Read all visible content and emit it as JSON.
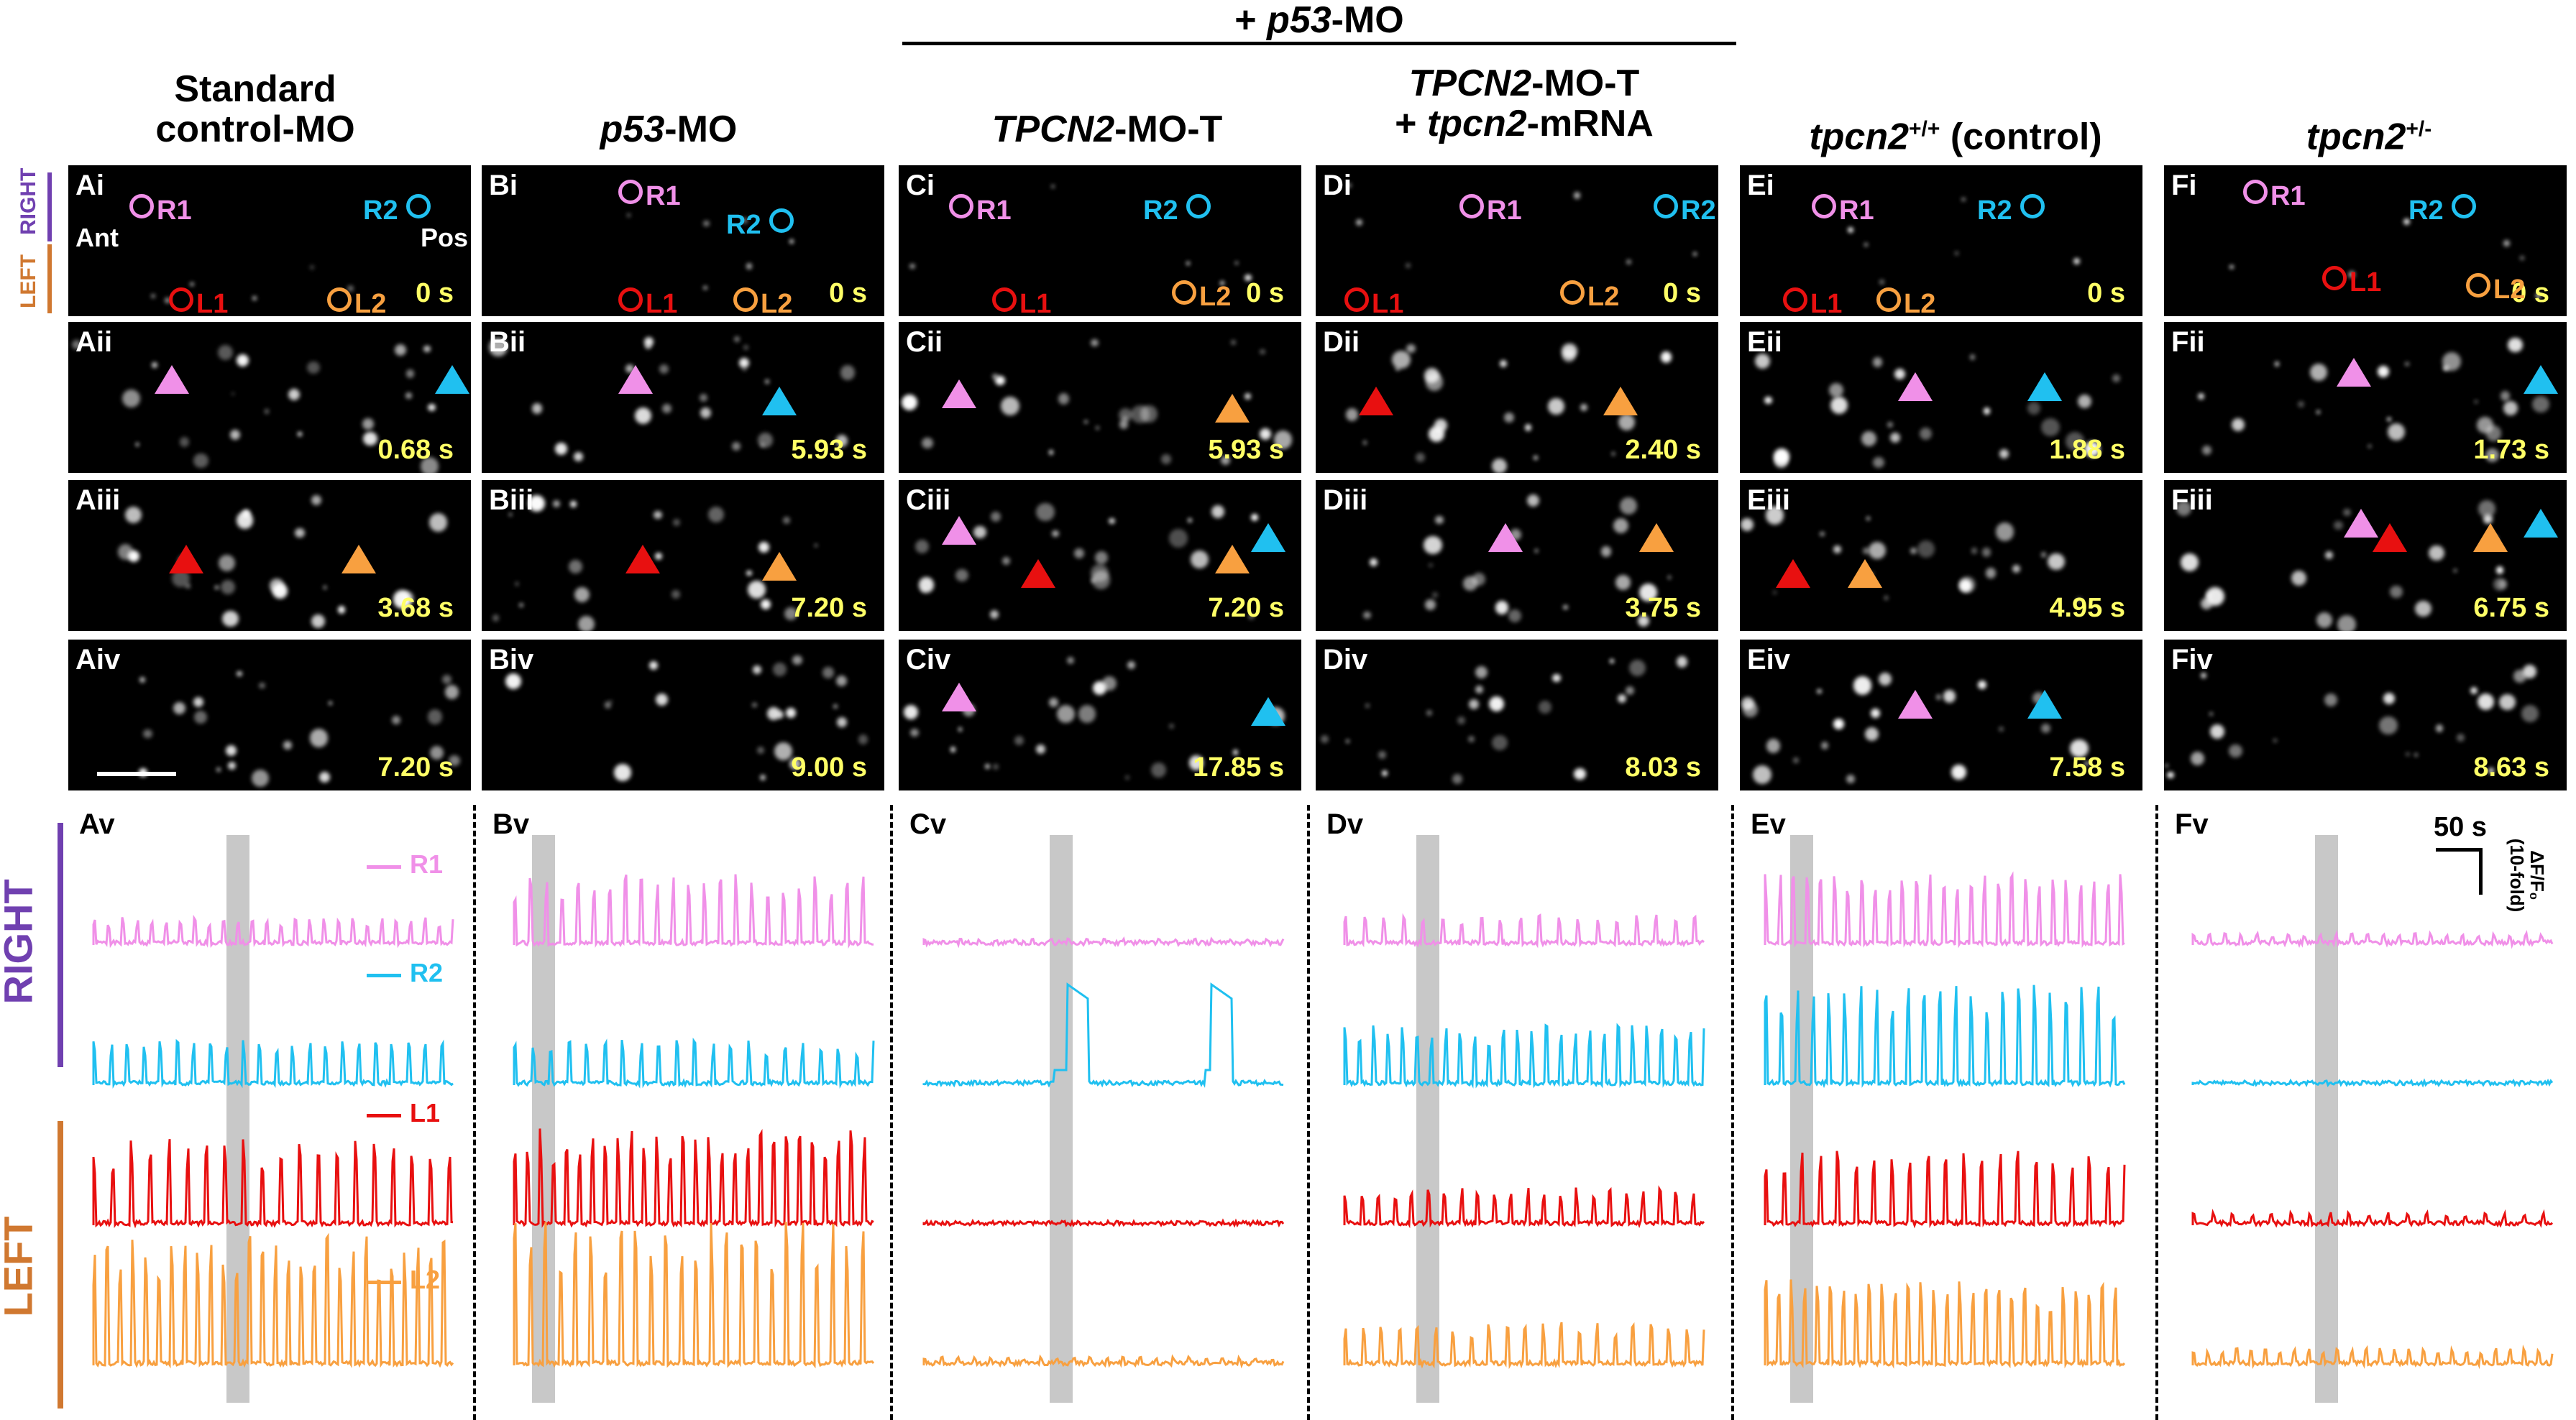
{
  "top_bracket": {
    "label_prefix": "+ ",
    "label_italic": "p53",
    "label_suffix": "-MO"
  },
  "columns": [
    {
      "id": "A",
      "header_lines": [
        "Standard",
        "control-MO"
      ],
      "header_italic": "",
      "times": [
        "0 s",
        "0.68 s",
        "3.68 s",
        "7.20 s"
      ]
    },
    {
      "id": "B",
      "header_italic": "p53",
      "header_suffix": "-MO",
      "times": [
        "0 s",
        "5.93 s",
        "7.20 s",
        "9.00 s"
      ]
    },
    {
      "id": "C",
      "header_italic": "TPCN2",
      "header_suffix": "-MO-T",
      "times": [
        "0 s",
        "5.93 s",
        "7.20 s",
        "17.85 s"
      ]
    },
    {
      "id": "D",
      "header_italic": "TPCN2",
      "header_suffix": "-MO-T",
      "header_line2_prefix": "+ ",
      "header_line2_italic": "tpcn2",
      "header_line2_suffix": "-mRNA",
      "times": [
        "0 s",
        "2.40 s",
        "3.75 s",
        "8.03 s"
      ]
    },
    {
      "id": "E",
      "header_italic": "tpcn2",
      "header_sup": "+/+",
      "header_suffix": " (control)",
      "times": [
        "0 s",
        "1.88 s",
        "4.95 s",
        "7.58 s"
      ]
    },
    {
      "id": "F",
      "header_italic": "tpcn2",
      "header_sup": "+/-",
      "header_suffix": "",
      "times": [
        "0 s",
        "1.73 s",
        "6.75 s",
        "8.63 s"
      ]
    }
  ],
  "row_suffixes": [
    "i",
    "ii",
    "iii",
    "iv",
    "v"
  ],
  "side_labels": {
    "right": "RIGHT",
    "left": "LEFT",
    "ant": "Ant",
    "pos": "Pos"
  },
  "roi_labels": {
    "r1": "R1",
    "r2": "R2",
    "l1": "L1",
    "l2": "L2"
  },
  "scale_bar": {
    "time": "50 s",
    "amp_line1": "ΔF/F₀",
    "amp_line2": "(10-fold)"
  },
  "colors": {
    "r1": "#f090e8",
    "r2": "#20c0f0",
    "l1": "#e81010",
    "l2": "#f8a040",
    "right": "#7040b0",
    "left": "#d07830",
    "time": "#ffff66"
  },
  "trace_amplitudes": {
    "A": {
      "r1": 0.35,
      "r2": 0.45,
      "l1": 0.8,
      "l2": 0.9
    },
    "B": {
      "r1": 0.9,
      "r2": 0.45,
      "l1": 0.9,
      "l2": 1.0
    },
    "C": {
      "r1": 0.08,
      "r2": 0.0,
      "l1": 0.02,
      "l2": 0.06
    },
    "D": {
      "r1": 0.4,
      "r2": 0.6,
      "l1": 0.35,
      "l2": 0.3
    },
    "E": {
      "r1": 0.9,
      "r2": 1.0,
      "l1": 0.7,
      "l2": 0.6
    },
    "F": {
      "r1": 0.15,
      "r2": 0.03,
      "l1": 0.12,
      "l2": 0.12
    }
  }
}
